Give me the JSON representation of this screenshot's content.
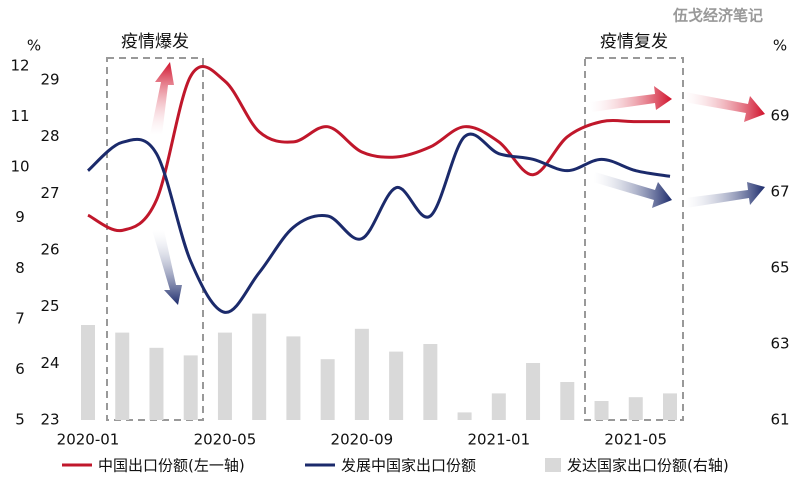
{
  "chart_data": {
    "type": "combo",
    "watermark": "伍戈经济笔记",
    "y_unit": "%",
    "y3_unit": "%",
    "annotations": [
      "疫情爆发",
      "疫情复发"
    ],
    "categories": [
      "2020-01",
      null,
      null,
      null,
      "2020-05",
      null,
      null,
      null,
      "2020-09",
      null,
      null,
      null,
      "2021-01",
      null,
      null,
      null,
      "2021-05",
      null
    ],
    "ylim": [
      5,
      12
    ],
    "yticks": [
      5,
      6,
      7,
      8,
      9,
      10,
      11,
      12
    ],
    "y2lim": [
      23,
      29
    ],
    "y2ticks": [
      23,
      24,
      25,
      26,
      27,
      28,
      29
    ],
    "y3lim": [
      61,
      69
    ],
    "y3ticks": [
      61,
      63,
      65,
      67,
      69
    ],
    "series": [
      {
        "name": "发达国家出口份额(右轴)",
        "type": "bar",
        "axis": "y3",
        "color": "#d9d9d9",
        "values": [
          63.5,
          63.3,
          62.9,
          62.7,
          63.3,
          63.8,
          63.2,
          62.6,
          63.4,
          62.8,
          63.0,
          61.2,
          61.7,
          62.5,
          62.0,
          61.5,
          61.6,
          61.7
        ]
      },
      {
        "name": "中国出口份额(左一轴)",
        "type": "line",
        "axis": "y",
        "color": "#c0172b",
        "values": [
          9.05,
          8.75,
          9.35,
          11.8,
          11.7,
          10.7,
          10.5,
          10.8,
          10.3,
          10.2,
          10.4,
          10.8,
          10.5,
          9.85,
          10.6,
          10.9,
          10.9,
          10.9
        ]
      },
      {
        "name": "发展中国家出口份额",
        "type": "line",
        "axis": "y2",
        "color": "#1b2a6b",
        "values": [
          27.4,
          27.9,
          27.7,
          25.8,
          24.9,
          25.6,
          26.4,
          26.6,
          26.2,
          27.1,
          26.6,
          28.0,
          27.7,
          27.6,
          27.4,
          27.6,
          27.4,
          27.3
        ]
      }
    ]
  }
}
